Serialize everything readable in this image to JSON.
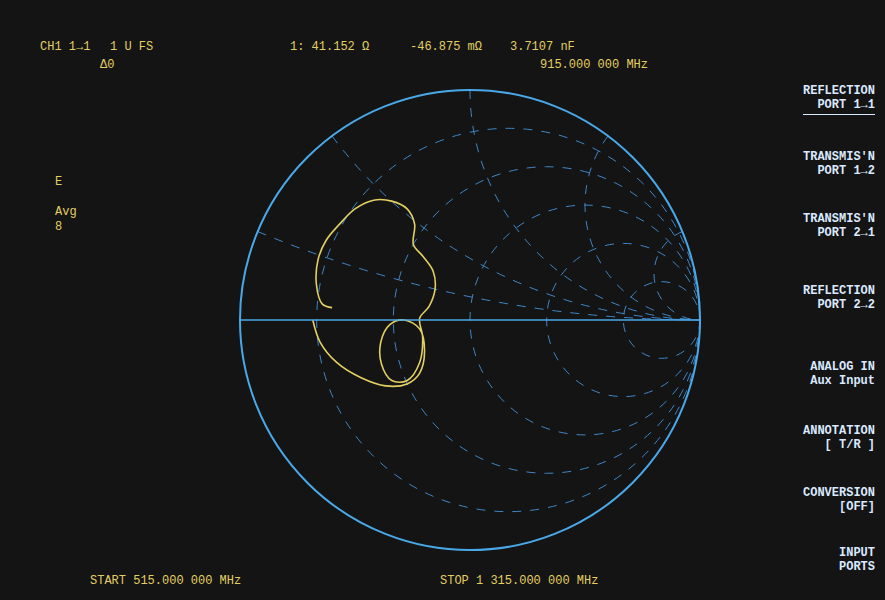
{
  "chart_data": {
    "type": "smith",
    "header": {
      "channel": "CH1 1→1",
      "scale": "1 U FS",
      "marker_readout": "1: 41.152 Ω",
      "reactance": "-46.875 mΩ",
      "capacitance": "3.7107 nF",
      "sub": "Δ0",
      "marker_frequency": "915.000 000 MHz"
    },
    "status": [
      "E",
      "Avg",
      "8"
    ],
    "softkeys": [
      [
        "REFLECTION",
        "PORT 1→1"
      ],
      [
        "TRANSMIS'N",
        "PORT 1→2"
      ],
      [
        "TRANSMIS'N",
        "PORT 2→1"
      ],
      [
        "REFLECTION",
        "PORT 2→2"
      ],
      [
        "ANALOG IN",
        "Aux Input"
      ],
      [
        "ANNOTATION",
        "[ T/R ]"
      ],
      [
        "CONVERSION",
        "[OFF]"
      ],
      [
        "INPUT",
        "PORTS"
      ]
    ],
    "start": "START 515.000 000 MHz",
    "stop": "STOP 1 315.000 000 MHz",
    "grid": true,
    "tick_labels": false,
    "xticks": [
      0.2,
      0.5,
      1,
      2,
      5
    ],
    "yticks": [
      0.2,
      0.5,
      1,
      2,
      5
    ],
    "series": [
      {
        "color": "#e2cf62",
        "line_style": "solid",
        "real": [
          0.249,
          0.216,
          0.189,
          0.175,
          0.177,
          0.192,
          0.208,
          0.242,
          0.299,
          0.373,
          0.448,
          0.501,
          0.575,
          0.668,
          0.713,
          0.693,
          0.641,
          0.652,
          0.604,
          0.507,
          0.437,
          0.417,
          0.434,
          0.484,
          0.555,
          0.639,
          0.649,
          0.583,
          0.499,
          0.402,
          0.319,
          0.249,
          0.207,
          0.188
        ],
        "imag": [
          0.042,
          0.051,
          0.11,
          0.186,
          0.251,
          0.317,
          0.389,
          0.456,
          0.501,
          0.521,
          0.487,
          0.395,
          0.363,
          0.305,
          0.201,
          0.083,
          0.011,
          -0.105,
          -0.243,
          -0.311,
          -0.282,
          -0.197,
          -0.1,
          -0.021,
          0,
          -0.052,
          -0.186,
          -0.301,
          -0.327,
          -0.294,
          -0.225,
          -0.146,
          -0.071,
          0
        ]
      }
    ]
  }
}
